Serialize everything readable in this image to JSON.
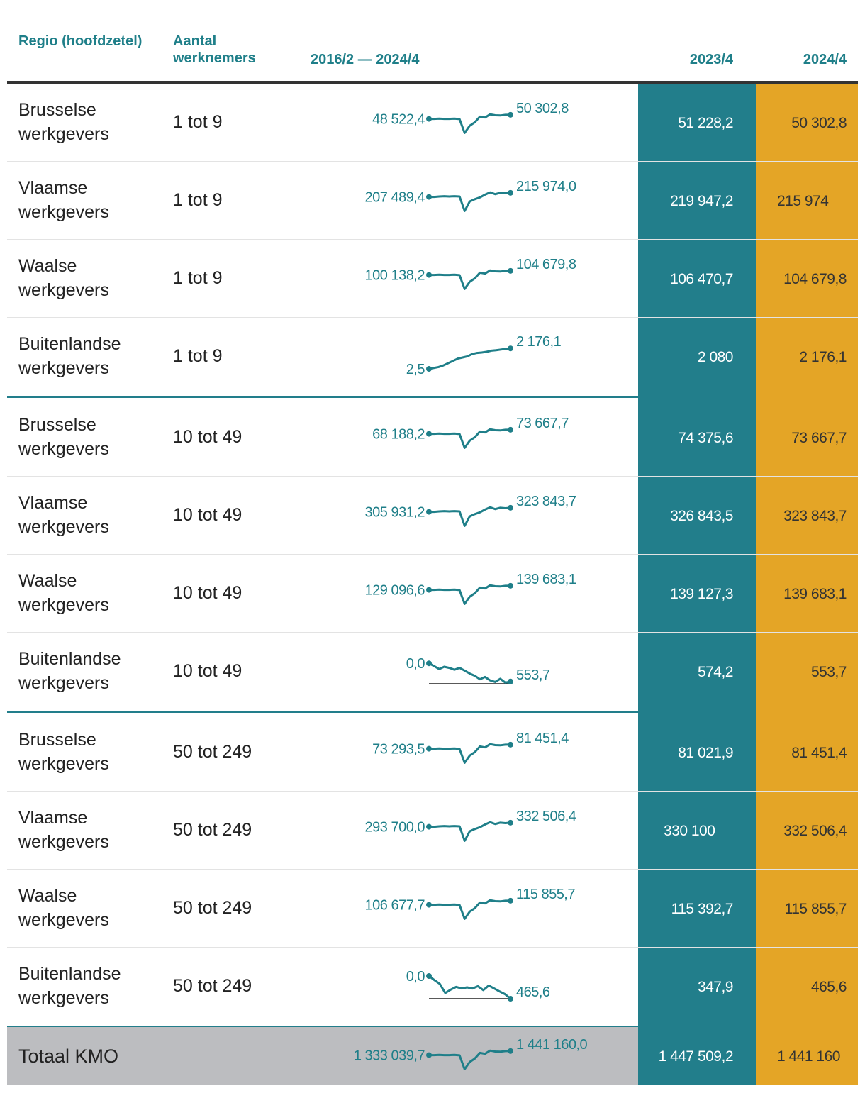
{
  "header": {
    "region_label": "Regio (hoofdzetel)",
    "size_label": "Aantal werknemers",
    "range_label": "2016/2 — 2024/4",
    "col_2023": "2023/4",
    "col_2024": "2024/4"
  },
  "rows": [
    {
      "region": "Brusselse werkgevers",
      "size": "1 tot 9",
      "start": "48 522,4",
      "end": "50 302,8",
      "v2023": "51 228,2",
      "v2024": "50 302,8",
      "spark": "dip1"
    },
    {
      "region": "Vlaamse werkgevers",
      "size": "1 tot 9",
      "start": "207 489,4",
      "end": "215 974,0",
      "v2023": "219 947,2",
      "v2024": "215 974",
      "spark": "dip2"
    },
    {
      "region": "Waalse werkgevers",
      "size": "1 tot 9",
      "start": "100 138,2",
      "end": "104 679,8",
      "v2023": "106 470,7",
      "v2024": "104 679,8",
      "spark": "dip1"
    },
    {
      "region": "Buitenlandse werkgevers",
      "size": "1 tot 9",
      "start": "2,5",
      "end": "2 176,1",
      "v2023": "2 080",
      "v2024": "2 176,1",
      "spark": "rise"
    },
    {
      "region": "Brusselse werkgevers",
      "size": "10 tot 49",
      "start": "68 188,2",
      "end": "73 667,7",
      "v2023": "74 375,6",
      "v2024": "73 667,7",
      "spark": "dip1"
    },
    {
      "region": "Vlaamse werkgevers",
      "size": "10 tot 49",
      "start": "305 931,2",
      "end": "323 843,7",
      "v2023": "326 843,5",
      "v2024": "323 843,7",
      "spark": "dip2"
    },
    {
      "region": "Waalse werkgevers",
      "size": "10 tot 49",
      "start": "129 096,6",
      "end": "139 683,1",
      "v2023": "139 127,3",
      "v2024": "139 683,1",
      "spark": "dip1"
    },
    {
      "region": "Buitenlandse werkgevers",
      "size": "10 tot 49",
      "start": "0,0",
      "end": "553,7",
      "v2023": "574,2",
      "v2024": "553,7",
      "spark": "zigzag"
    },
    {
      "region": "Brusselse werkgevers",
      "size": "50 tot 249",
      "start": "73 293,5",
      "end": "81 451,4",
      "v2023": "81 021,9",
      "v2024": "81 451,4",
      "spark": "dip1"
    },
    {
      "region": "Vlaamse werkgevers",
      "size": "50 tot 249",
      "start": "293 700,0",
      "end": "332 506,4",
      "v2023": "330 100",
      "v2024": "332 506,4",
      "spark": "dip2"
    },
    {
      "region": "Waalse werkgevers",
      "size": "50 tot 249",
      "start": "106 677,7",
      "end": "115 855,7",
      "v2023": "115 392,7",
      "v2024": "115 855,7",
      "spark": "dip1"
    },
    {
      "region": "Buitenlandse werkgevers",
      "size": "50 tot 249",
      "start": "0,0",
      "end": "465,6",
      "v2023": "347,9",
      "v2024": "465,6",
      "spark": "bumpy"
    }
  ],
  "total": {
    "label": "Totaal KMO",
    "start": "1 333 039,7",
    "end": "1 441 160,0",
    "v2023": "1 447 509,2",
    "v2024": "1 441 160",
    "spark": "dip1"
  },
  "chart_data": {
    "type": "table",
    "columns": [
      "Regio (hoofdzetel)",
      "Aantal werknemers",
      "2016/2 — 2024/4",
      "2023/4",
      "2024/4"
    ],
    "rows": [
      [
        "Brusselse werkgevers",
        "1 tot 9",
        48522.4,
        50302.8,
        51228.2,
        50302.8
      ],
      [
        "Vlaamse werkgevers",
        "1 tot 9",
        207489.4,
        215974.0,
        219947.2,
        215974
      ],
      [
        "Waalse werkgevers",
        "1 tot 9",
        100138.2,
        104679.8,
        106470.7,
        104679.8
      ],
      [
        "Buitenlandse werkgevers",
        "1 tot 9",
        2.5,
        2176.1,
        2080,
        2176.1
      ],
      [
        "Brusselse werkgevers",
        "10 tot 49",
        68188.2,
        73667.7,
        74375.6,
        73667.7
      ],
      [
        "Vlaamse werkgevers",
        "10 tot 49",
        305931.2,
        323843.7,
        326843.5,
        323843.7
      ],
      [
        "Waalse werkgevers",
        "10 tot 49",
        129096.6,
        139683.1,
        139127.3,
        139683.1
      ],
      [
        "Buitenlandse werkgevers",
        "10 tot 49",
        0.0,
        553.7,
        574.2,
        553.7
      ],
      [
        "Brusselse werkgevers",
        "50 tot 249",
        73293.5,
        81451.4,
        81021.9,
        81451.4
      ],
      [
        "Vlaamse werkgevers",
        "50 tot 249",
        293700.0,
        332506.4,
        330100,
        332506.4
      ],
      [
        "Waalse werkgevers",
        "50 tot 249",
        106677.7,
        115855.7,
        115392.7,
        115855.7
      ],
      [
        "Buitenlandse werkgevers",
        "50 tot 249",
        0.0,
        465.6,
        347.9,
        465.6
      ],
      [
        "Totaal KMO",
        "",
        1333039.7,
        1441160.0,
        1447509.2,
        1441160
      ]
    ],
    "sparkline_series": {
      "dip1": [
        0.3,
        0.3,
        0.29,
        0.3,
        0.3,
        0.29,
        0.31,
        0.92,
        0.6,
        0.45,
        0.2,
        0.24,
        0.1,
        0.14,
        0.15,
        0.12,
        0.12
      ],
      "dip2": [
        0.3,
        0.3,
        0.28,
        0.27,
        0.28,
        0.27,
        0.28,
        0.92,
        0.5,
        0.4,
        0.32,
        0.2,
        0.1,
        0.18,
        0.12,
        0.14,
        0.12
      ],
      "rise": [
        1.0,
        0.96,
        0.92,
        0.85,
        0.75,
        0.65,
        0.55,
        0.5,
        0.45,
        0.35,
        0.3,
        0.28,
        0.25,
        0.2,
        0.18,
        0.15,
        0.12,
        0.1
      ],
      "zigzag": [
        0.1,
        0.22,
        0.35,
        0.25,
        0.3,
        0.38,
        0.3,
        0.42,
        0.55,
        0.65,
        0.8,
        0.7,
        0.85,
        0.92,
        0.78,
        0.95,
        0.9
      ],
      "bumpy": [
        0.0,
        0.18,
        0.35,
        0.75,
        0.6,
        0.48,
        0.55,
        0.5,
        0.55,
        0.45,
        0.62,
        0.42,
        0.55,
        0.68,
        0.8,
        1.0
      ]
    }
  }
}
